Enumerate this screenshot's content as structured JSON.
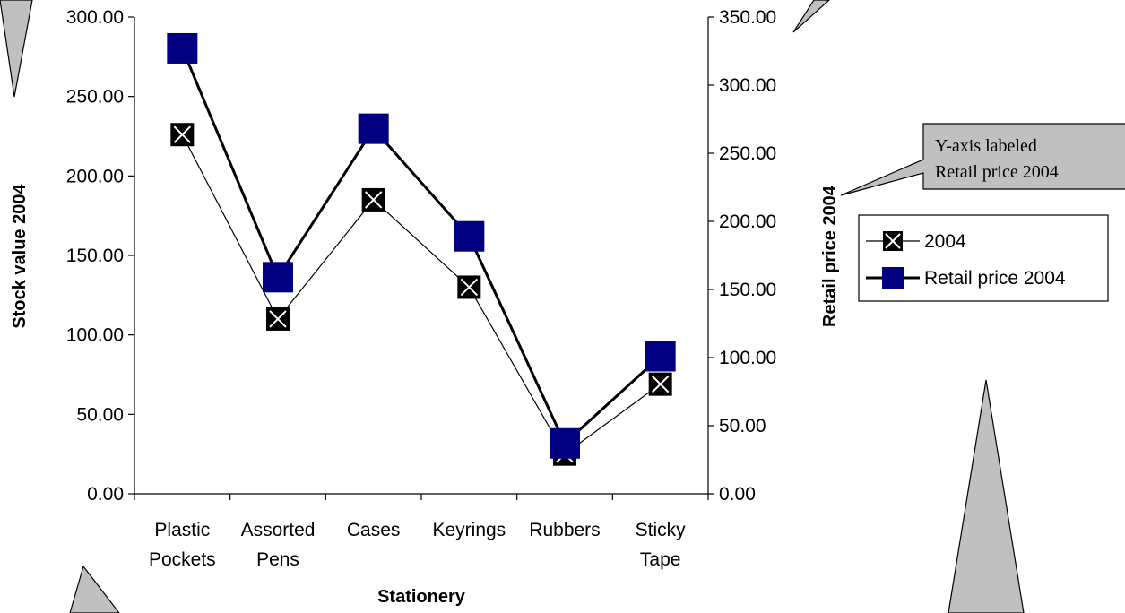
{
  "chart_data": {
    "type": "line",
    "categories": [
      [
        "Plastic",
        "Pockets"
      ],
      [
        "Assorted",
        "Pens"
      ],
      [
        "Cases"
      ],
      [
        "Keyrings"
      ],
      [
        "Rubbers"
      ],
      [
        "Sticky",
        "Tape"
      ]
    ],
    "xlabel": "Stationery",
    "ylabel_left": "Stock value 2004",
    "ylabel_right": "Retail price 2004",
    "ylim_left": [
      0,
      300
    ],
    "ylim_right": [
      0,
      350
    ],
    "yticks_left": [
      "0.00",
      "50.00",
      "100.00",
      "150.00",
      "200.00",
      "250.00",
      "300.00"
    ],
    "yticks_right": [
      "0.00",
      "50.00",
      "100.00",
      "150.00",
      "200.00",
      "250.00",
      "300.00",
      "350.00"
    ],
    "grid": false,
    "legend_position": "right",
    "series": [
      {
        "name": "2004",
        "axis": "left",
        "values": [
          226,
          110,
          185,
          130,
          25,
          69
        ],
        "color": "#000000",
        "marker": "x-square"
      },
      {
        "name": "Retail price 2004",
        "axis": "right",
        "values": [
          327,
          159,
          268,
          189,
          37,
          101
        ],
        "color": "#000080",
        "marker": "square"
      }
    ]
  },
  "callout": {
    "line1": "Y-axis labeled",
    "line2": "Retail price 2004"
  },
  "colors": {
    "callout_fill": "#c0c0c0",
    "series_retail": "#000080"
  }
}
